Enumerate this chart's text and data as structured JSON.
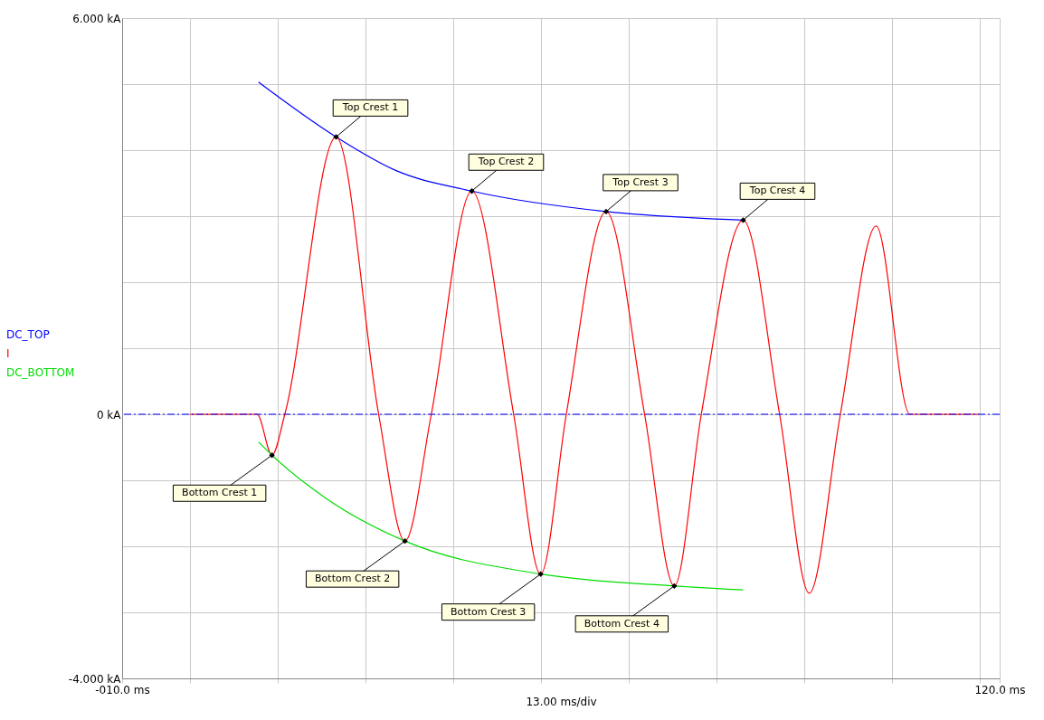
{
  "chart_data": {
    "type": "line",
    "xlabel": "13.00 ms/div",
    "xlim": [
      -10,
      120
    ],
    "ylim": [
      -4,
      6
    ],
    "xticks": [
      {
        "value": -10,
        "label": "-010.0 ms"
      },
      {
        "value": 0,
        "label": null
      },
      {
        "value": 13,
        "label": null
      },
      {
        "value": 26,
        "label": null
      },
      {
        "value": 39,
        "label": null
      },
      {
        "value": 52,
        "label": null
      },
      {
        "value": 65,
        "label": null
      },
      {
        "value": 78,
        "label": null
      },
      {
        "value": 91,
        "label": null
      },
      {
        "value": 104,
        "label": null
      },
      {
        "value": 117,
        "label": null
      },
      {
        "value": 120,
        "label": "120.0 ms"
      }
    ],
    "yticks": [
      {
        "value": -4,
        "label": "-4.000 kA"
      },
      {
        "value": -3,
        "label": null
      },
      {
        "value": -2,
        "label": null
      },
      {
        "value": -1,
        "label": null
      },
      {
        "value": 0,
        "label": "0 kA"
      },
      {
        "value": 1,
        "label": null
      },
      {
        "value": 2,
        "label": null
      },
      {
        "value": 3,
        "label": null
      },
      {
        "value": 4,
        "label": null
      },
      {
        "value": 5,
        "label": null
      },
      {
        "value": 6,
        "label": "6.000 kA"
      }
    ],
    "grid": true,
    "legend": "left",
    "series": [
      {
        "name": "DC_TOP",
        "color": "#0000ff",
        "x": [
          10.2,
          21.7,
          30.6,
          41.8,
          61.7,
          82.0
        ],
        "values": [
          5.03,
          4.2,
          3.69,
          3.38,
          3.07,
          2.94
        ]
      },
      {
        "name": "I",
        "color": "#ff0000",
        "x": [
          0,
          10,
          12.2,
          14.1,
          21.7,
          28.0,
          31.9,
          35.8,
          41.8,
          48.0,
          52.0,
          55.8,
          61.7,
          67.4,
          71.8,
          75.8,
          82.0,
          87.4,
          91.8,
          96.4,
          101.7,
          106.7,
          117
        ],
        "values": [
          0,
          0,
          -0.62,
          0,
          4.2,
          0,
          -1.92,
          0,
          3.38,
          0,
          -2.42,
          0,
          3.07,
          0,
          -2.6,
          0,
          2.94,
          0,
          -2.71,
          0,
          2.85,
          0,
          0
        ]
      },
      {
        "name": "DC_BOTTOM",
        "color": "#00dd00",
        "x": [
          10.2,
          12.2,
          20.3,
          31.9,
          52.0,
          71.8,
          82.0
        ],
        "values": [
          -0.42,
          -0.62,
          -1.28,
          -1.92,
          -2.42,
          -2.6,
          -2.66
        ]
      }
    ],
    "ref_lines": [
      {
        "axis": "y",
        "value": 0,
        "color": "#0000ff",
        "line_style": "dashed"
      }
    ],
    "annotations": [
      {
        "text": "Top Crest 1",
        "x": 21.7,
        "y": 4.2
      },
      {
        "text": "Top Crest 2",
        "x": 41.8,
        "y": 3.38
      },
      {
        "text": "Top Crest 3",
        "x": 61.7,
        "y": 3.07
      },
      {
        "text": "Top Crest 4",
        "x": 82.0,
        "y": 2.94
      },
      {
        "text": "Bottom Crest 1",
        "x": 12.2,
        "y": -0.62
      },
      {
        "text": "Bottom Crest 2",
        "x": 31.9,
        "y": -1.92
      },
      {
        "text": "Bottom Crest 3",
        "x": 52.0,
        "y": -2.42
      },
      {
        "text": "Bottom Crest 4",
        "x": 71.8,
        "y": -2.6
      }
    ]
  }
}
